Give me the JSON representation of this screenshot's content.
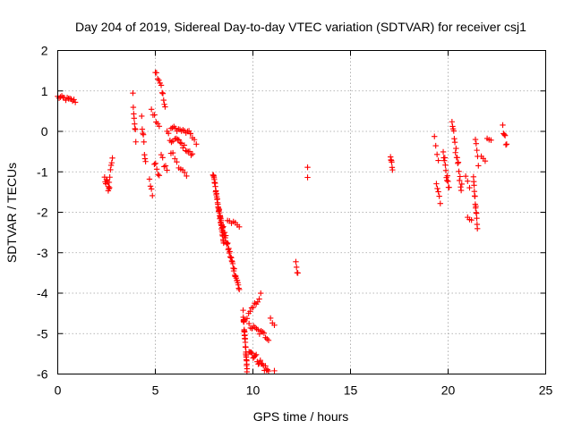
{
  "chart_data": {
    "type": "scatter",
    "title": "Day 204 of 2019, Sidereal Day-to-day VTEC variation (SDTVAR) for receiver csj1",
    "xlabel": "GPS time / hours",
    "ylabel": "SDTVAR / TECUs",
    "xlim": [
      0,
      25
    ],
    "ylim": [
      -6,
      2
    ],
    "x_ticks": [
      0,
      5,
      10,
      15,
      20,
      25
    ],
    "y_ticks": [
      -6,
      -5,
      -4,
      -3,
      -2,
      -1,
      0,
      1,
      2
    ],
    "x_tick_labels": [
      "0",
      "5",
      "10",
      "15",
      "20",
      "25"
    ],
    "y_tick_labels": [
      "-6",
      "-5",
      "-4",
      "-3",
      "-2",
      "-1",
      "0",
      "1",
      "2"
    ],
    "grid": true,
    "marker": "plus",
    "color": "#ff0000",
    "segments": [
      {
        "x": [
          0.0,
          0.9
        ],
        "y": [
          0.85,
          0.75
        ],
        "n": 14,
        "jitter": 0.05
      },
      {
        "x": [
          2.4,
          2.65
        ],
        "y": [
          -1.15,
          -1.45
        ],
        "n": 9,
        "jitter": 0.12
      },
      {
        "x": [
          2.6,
          2.8
        ],
        "y": [
          -1.35,
          -0.65
        ],
        "n": 7,
        "jitter": 0.06
      },
      {
        "x": [
          3.85,
          4.0
        ],
        "y": [
          0.85,
          -0.25
        ],
        "n": 8,
        "jitter": 0.15
      },
      {
        "x": [
          4.3,
          4.5
        ],
        "y": [
          0.3,
          -0.85
        ],
        "n": 8,
        "jitter": 0.15
      },
      {
        "x": [
          4.7,
          4.85
        ],
        "y": [
          -1.2,
          -1.55
        ],
        "n": 4,
        "jitter": 0.05
      },
      {
        "x": [
          4.8,
          5.2
        ],
        "y": [
          0.5,
          0.15
        ],
        "n": 6,
        "jitter": 0.12
      },
      {
        "x": [
          4.95,
          5.2
        ],
        "y": [
          -0.8,
          -1.05
        ],
        "n": 5,
        "jitter": 0.08
      },
      {
        "x": [
          5.0,
          5.3
        ],
        "y": [
          1.5,
          1.15
        ],
        "n": 6,
        "jitter": 0.06
      },
      {
        "x": [
          5.35,
          5.5
        ],
        "y": [
          1.0,
          0.55
        ],
        "n": 5,
        "jitter": 0.08
      },
      {
        "x": [
          5.3,
          5.6
        ],
        "y": [
          -0.6,
          -0.95
        ],
        "n": 5,
        "jitter": 0.1
      },
      {
        "x": [
          5.6,
          5.9
        ],
        "y": [
          0.0,
          -0.35
        ],
        "n": 5,
        "jitter": 0.12
      },
      {
        "x": [
          5.8,
          6.8
        ],
        "y": [
          0.1,
          -0.05
        ],
        "n": 14,
        "jitter": 0.05
      },
      {
        "x": [
          6.0,
          6.9
        ],
        "y": [
          -0.15,
          -0.6
        ],
        "n": 14,
        "jitter": 0.06
      },
      {
        "x": [
          5.8,
          6.6
        ],
        "y": [
          -0.5,
          -1.15
        ],
        "n": 9,
        "jitter": 0.08
      },
      {
        "x": [
          6.8,
          7.1
        ],
        "y": [
          -0.1,
          -0.3
        ],
        "n": 4,
        "jitter": 0.04
      },
      {
        "x": [
          7.95,
          8.5
        ],
        "y": [
          -1.0,
          -2.7
        ],
        "n": 40,
        "jitter": 0.08
      },
      {
        "x": [
          8.3,
          9.3
        ],
        "y": [
          -2.1,
          -3.9
        ],
        "n": 40,
        "jitter": 0.08
      },
      {
        "x": [
          8.7,
          9.3
        ],
        "y": [
          -2.2,
          -2.35
        ],
        "n": 7,
        "jitter": 0.05
      },
      {
        "x": [
          9.5,
          9.7
        ],
        "y": [
          -4.5,
          -5.9
        ],
        "n": 30,
        "jitter": 0.1
      },
      {
        "x": [
          9.7,
          10.4
        ],
        "y": [
          -4.6,
          -4.05
        ],
        "n": 10,
        "jitter": 0.06
      },
      {
        "x": [
          9.8,
          10.8
        ],
        "y": [
          -4.8,
          -5.1
        ],
        "n": 14,
        "jitter": 0.08
      },
      {
        "x": [
          9.8,
          10.8
        ],
        "y": [
          -5.4,
          -5.95
        ],
        "n": 20,
        "jitter": 0.1
      },
      {
        "x": [
          10.9,
          11.1
        ],
        "y": [
          -4.6,
          -4.8
        ],
        "n": 3,
        "jitter": 0.05
      },
      {
        "x": [
          11.1,
          11.1
        ],
        "y": [
          -5.92,
          -5.92
        ],
        "n": 1,
        "jitter": 0.0
      },
      {
        "x": [
          12.2,
          12.3
        ],
        "y": [
          -3.25,
          -3.55
        ],
        "n": 4,
        "jitter": 0.05
      },
      {
        "x": [
          12.8,
          12.8
        ],
        "y": [
          -0.9,
          -1.15
        ],
        "n": 2,
        "jitter": 0.02
      },
      {
        "x": [
          17.05,
          17.15
        ],
        "y": [
          -0.6,
          -0.95
        ],
        "n": 6,
        "jitter": 0.06
      },
      {
        "x": [
          19.3,
          19.5
        ],
        "y": [
          -0.2,
          -0.75
        ],
        "n": 4,
        "jitter": 0.08
      },
      {
        "x": [
          19.4,
          19.6
        ],
        "y": [
          -1.3,
          -1.75
        ],
        "n": 5,
        "jitter": 0.08
      },
      {
        "x": [
          19.75,
          20.05
        ],
        "y": [
          -0.45,
          -1.5
        ],
        "n": 12,
        "jitter": 0.12
      },
      {
        "x": [
          20.2,
          20.7
        ],
        "y": [
          0.15,
          -1.45
        ],
        "n": 18,
        "jitter": 0.15
      },
      {
        "x": [
          20.9,
          21.1
        ],
        "y": [
          -1.1,
          -1.35
        ],
        "n": 3,
        "jitter": 0.05
      },
      {
        "x": [
          21.0,
          21.2
        ],
        "y": [
          -2.15,
          -2.2
        ],
        "n": 3,
        "jitter": 0.03
      },
      {
        "x": [
          21.3,
          21.5
        ],
        "y": [
          -1.2,
          -2.35
        ],
        "n": 14,
        "jitter": 0.08
      },
      {
        "x": [
          21.4,
          21.55
        ],
        "y": [
          -0.15,
          -0.8
        ],
        "n": 5,
        "jitter": 0.06
      },
      {
        "x": [
          21.7,
          21.9
        ],
        "y": [
          -0.6,
          -0.7
        ],
        "n": 3,
        "jitter": 0.04
      },
      {
        "x": [
          22.0,
          22.2
        ],
        "y": [
          -0.15,
          -0.2
        ],
        "n": 3,
        "jitter": 0.04
      },
      {
        "x": [
          22.8,
          23.0
        ],
        "y": [
          0.1,
          -0.35
        ],
        "n": 6,
        "jitter": 0.08
      }
    ]
  }
}
